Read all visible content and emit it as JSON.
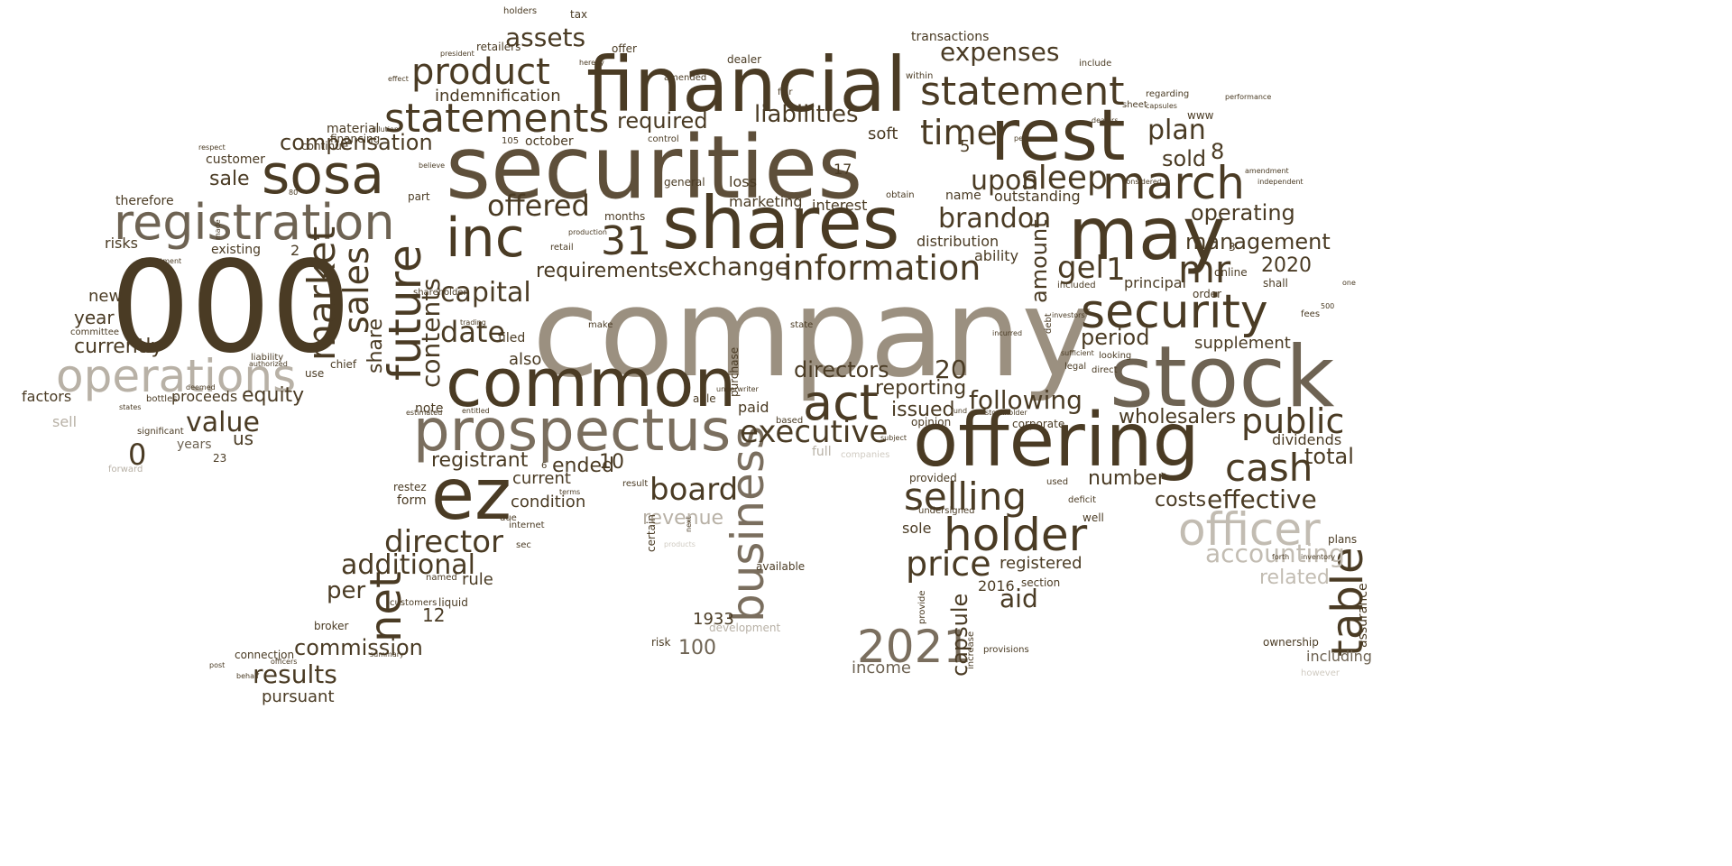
{
  "words": [
    {
      "text": "company",
      "color": "#9b9080"
    },
    {
      "text": "securities",
      "color": "#5e4f3a"
    },
    {
      "text": "000",
      "color": "#4a3b24"
    },
    {
      "text": "financial",
      "color": "#4a3b24"
    },
    {
      "text": "shares",
      "color": "#4a3b24"
    },
    {
      "text": "stock",
      "color": "#6e6353"
    },
    {
      "text": "offering",
      "color": "#4a3b24"
    },
    {
      "text": "common",
      "color": "#4a3b24"
    },
    {
      "text": "prospectus",
      "color": "#7a6e5e"
    },
    {
      "text": "rest",
      "color": "#4a3b24"
    },
    {
      "text": "may",
      "color": "#4a3b24"
    },
    {
      "text": "inc",
      "color": "#4a3b24"
    },
    {
      "text": "ez",
      "color": "#4a3b24"
    },
    {
      "text": "sosa",
      "color": "#4a3b24"
    },
    {
      "text": "registration",
      "color": "#6e6353"
    },
    {
      "text": "statement",
      "color": "#4a3b24"
    },
    {
      "text": "statements",
      "color": "#4a3b24"
    },
    {
      "text": "operations",
      "color": "#b8b1a6"
    },
    {
      "text": "product",
      "color": "#4a3b24"
    },
    {
      "text": "security",
      "color": "#4a3b24"
    },
    {
      "text": "march",
      "color": "#4a3b24"
    },
    {
      "text": "information",
      "color": "#4a3b24"
    },
    {
      "text": "selling",
      "color": "#4a3b24"
    },
    {
      "text": "holder",
      "color": "#4a3b24"
    },
    {
      "text": "officer",
      "color": "#c2bcb2"
    },
    {
      "text": "business",
      "color": "#7a6e5e"
    },
    {
      "text": "future",
      "color": "#4a3b24"
    },
    {
      "text": "market",
      "color": "#4a3b24"
    },
    {
      "text": "act",
      "color": "#4a3b24"
    },
    {
      "text": "2021",
      "color": "#7a6e5e"
    },
    {
      "text": "cash",
      "color": "#4a3b24"
    },
    {
      "text": "public",
      "color": "#4a3b24"
    },
    {
      "text": "table",
      "color": "#4a3b24"
    },
    {
      "text": "director",
      "color": "#4a3b24"
    },
    {
      "text": "executive",
      "color": "#4a3b24"
    },
    {
      "text": "sales",
      "color": "#4a3b24"
    },
    {
      "text": "net",
      "color": "#4a3b24"
    },
    {
      "text": "price",
      "color": "#4a3b24"
    },
    {
      "text": "time",
      "color": "#4a3b24"
    },
    {
      "text": "31",
      "color": "#4a3b24"
    },
    {
      "text": "additional",
      "color": "#4a3b24"
    },
    {
      "text": "offered",
      "color": "#4a3b24"
    },
    {
      "text": "expenses",
      "color": "#4a3b24"
    },
    {
      "text": "assets",
      "color": "#4a3b24"
    },
    {
      "text": "liabilities",
      "color": "#4a3b24"
    },
    {
      "text": "compensation",
      "color": "#4a3b24"
    },
    {
      "text": "required",
      "color": "#4a3b24"
    },
    {
      "text": "indemnification",
      "color": "#4a3b24"
    },
    {
      "text": "upon",
      "color": "#4a3b24"
    },
    {
      "text": "sleep",
      "color": "#4a3b24"
    },
    {
      "text": "brandon",
      "color": "#4a3b24"
    },
    {
      "text": "plan",
      "color": "#4a3b24"
    },
    {
      "text": "sold",
      "color": "#4a3b24"
    },
    {
      "text": "mr",
      "color": "#4a3b24"
    },
    {
      "text": "gel",
      "color": "#4a3b24"
    },
    {
      "text": "management",
      "color": "#4a3b24"
    },
    {
      "text": "operating",
      "color": "#4a3b24"
    },
    {
      "text": "2020",
      "color": "#4a3b24"
    },
    {
      "text": "exchange",
      "color": "#4a3b24"
    },
    {
      "text": "capital",
      "color": "#4a3b24"
    },
    {
      "text": "requirements",
      "color": "#4a3b24"
    },
    {
      "text": "date",
      "color": "#4a3b24"
    },
    {
      "text": "contents",
      "color": "#4a3b24"
    },
    {
      "text": "share",
      "color": "#4a3b24"
    },
    {
      "text": "amount",
      "color": "#4a3b24"
    },
    {
      "text": "period",
      "color": "#4a3b24"
    },
    {
      "text": "supplement",
      "color": "#4a3b24"
    },
    {
      "text": "directors",
      "color": "#4a3b24"
    },
    {
      "text": "reporting",
      "color": "#4a3b24"
    },
    {
      "text": "following",
      "color": "#4a3b24"
    },
    {
      "text": "wholesalers",
      "color": "#4a3b24"
    },
    {
      "text": "issued",
      "color": "#4a3b24"
    },
    {
      "text": "dividends",
      "color": "#4a3b24"
    },
    {
      "text": "total",
      "color": "#4a3b24"
    },
    {
      "text": "effective",
      "color": "#4a3b24"
    },
    {
      "text": "accounting",
      "color": "#c2bcb2"
    },
    {
      "text": "related",
      "color": "#c2bcb2"
    },
    {
      "text": "costs",
      "color": "#4a3b24"
    },
    {
      "text": "number",
      "color": "#4a3b24"
    },
    {
      "text": "board",
      "color": "#4a3b24"
    },
    {
      "text": "revenue",
      "color": "#b8b1a6"
    },
    {
      "text": "registrant",
      "color": "#4a3b24"
    },
    {
      "text": "ended",
      "color": "#4a3b24"
    },
    {
      "text": "10",
      "color": "#4a3b24"
    },
    {
      "text": "current",
      "color": "#4a3b24"
    },
    {
      "text": "condition",
      "color": "#4a3b24"
    },
    {
      "text": "value",
      "color": "#4a3b24"
    },
    {
      "text": "equity",
      "color": "#4a3b24"
    },
    {
      "text": "proceeds",
      "color": "#4a3b24"
    },
    {
      "text": "us",
      "color": "#4a3b24"
    },
    {
      "text": "years",
      "color": "#6e6353"
    },
    {
      "text": "0",
      "color": "#4a3b24"
    },
    {
      "text": "currently",
      "color": "#4a3b24"
    },
    {
      "text": "year",
      "color": "#4a3b24"
    },
    {
      "text": "new",
      "color": "#4a3b24"
    },
    {
      "text": "risks",
      "color": "#4a3b24"
    },
    {
      "text": "existing",
      "color": "#4a3b24"
    },
    {
      "text": "sale",
      "color": "#4a3b24"
    },
    {
      "text": "customer",
      "color": "#4a3b24"
    },
    {
      "text": "therefore",
      "color": "#4a3b24"
    },
    {
      "text": "material",
      "color": "#4a3b24"
    },
    {
      "text": "financing",
      "color": "#4a3b24"
    },
    {
      "text": "continue",
      "color": "#4a3b24"
    },
    {
      "text": "factors",
      "color": "#4a3b24"
    },
    {
      "text": "sell",
      "color": "#b8b1a6"
    },
    {
      "text": "per",
      "color": "#4a3b24"
    },
    {
      "text": "commission",
      "color": "#4a3b24"
    },
    {
      "text": "results",
      "color": "#4a3b24"
    },
    {
      "text": "pursuant",
      "color": "#4a3b24"
    },
    {
      "text": "rule",
      "color": "#4a3b24"
    },
    {
      "text": "12",
      "color": "#4a3b24"
    },
    {
      "text": "aid",
      "color": "#4a3b24"
    },
    {
      "text": "2016",
      "color": "#4a3b24"
    },
    {
      "text": "registered",
      "color": "#4a3b24"
    },
    {
      "text": "capsule",
      "color": "#4a3b24"
    },
    {
      "text": "income",
      "color": "#6e6353"
    },
    {
      "text": "100",
      "color": "#6e6353"
    },
    {
      "text": "1933",
      "color": "#4a3b24"
    },
    {
      "text": "including",
      "color": "#6e6353"
    },
    {
      "text": "assurance",
      "color": "#4a3b24"
    },
    {
      "text": "ownership",
      "color": "#4a3b24"
    },
    {
      "text": "also",
      "color": "#4a3b24"
    },
    {
      "text": "filed",
      "color": "#4a3b24"
    },
    {
      "text": "note",
      "color": "#4a3b24"
    },
    {
      "text": "october",
      "color": "#4a3b24"
    },
    {
      "text": "soft",
      "color": "#4a3b24"
    },
    {
      "text": "loss",
      "color": "#4a3b24"
    },
    {
      "text": "marketing",
      "color": "#4a3b24"
    },
    {
      "text": "interest",
      "color": "#4a3b24"
    },
    {
      "text": "outstanding",
      "color": "#4a3b24"
    },
    {
      "text": "name",
      "color": "#4a3b24"
    },
    {
      "text": "distribution",
      "color": "#4a3b24"
    },
    {
      "text": "ability",
      "color": "#4a3b24"
    },
    {
      "text": "principal",
      "color": "#4a3b24"
    },
    {
      "text": "paid",
      "color": "#4a3b24"
    },
    {
      "text": "sole",
      "color": "#4a3b24"
    },
    {
      "text": "transactions",
      "color": "#4a3b24"
    },
    {
      "text": "20",
      "color": "#4a3b24"
    },
    {
      "text": "17",
      "color": "#4a3b24"
    },
    {
      "text": "8",
      "color": "#4a3b24"
    },
    {
      "text": "5",
      "color": "#4a3b24"
    },
    {
      "text": "1",
      "color": "#4a3b24"
    },
    {
      "text": "2",
      "color": "#4a3b24"
    },
    {
      "text": "tax",
      "color": "#4a3b24"
    },
    {
      "text": "holders",
      "color": "#4a3b24"
    },
    {
      "text": "retailers",
      "color": "#4a3b24"
    },
    {
      "text": "offer",
      "color": "#4a3b24"
    },
    {
      "text": "dealer",
      "color": "#4a3b24"
    },
    {
      "text": "broker",
      "color": "#4a3b24"
    },
    {
      "text": "connection",
      "color": "#4a3b24"
    },
    {
      "text": "liquid",
      "color": "#4a3b24"
    },
    {
      "text": "form",
      "color": "#4a3b24"
    },
    {
      "text": "restez",
      "color": "#4a3b24"
    },
    {
      "text": "development",
      "color": "#b8b1a6"
    },
    {
      "text": "available",
      "color": "#4a3b24"
    },
    {
      "text": "full",
      "color": "#b8b1a6"
    },
    {
      "text": "companies",
      "color": "#d0cbc2"
    },
    {
      "text": "however",
      "color": "#d0cbc2"
    },
    {
      "text": "forward",
      "color": "#b8b1a6"
    },
    {
      "text": "23",
      "color": "#4a3b24"
    },
    {
      "text": "chief",
      "color": "#4a3b24"
    },
    {
      "text": "use",
      "color": "#4a3b24"
    },
    {
      "text": "shareholder",
      "color": "#4a3b24"
    },
    {
      "text": "retail",
      "color": "#4a3b24"
    },
    {
      "text": "months",
      "color": "#4a3b24"
    },
    {
      "text": "part",
      "color": "#4a3b24"
    },
    {
      "text": "well",
      "color": "#4a3b24"
    },
    {
      "text": "provided",
      "color": "#4a3b24"
    },
    {
      "text": "used",
      "color": "#4a3b24"
    },
    {
      "text": "section",
      "color": "#4a3b24"
    },
    {
      "text": "plans",
      "color": "#4a3b24"
    },
    {
      "text": "shall",
      "color": "#4a3b24"
    },
    {
      "text": "order",
      "color": "#4a3b24"
    },
    {
      "text": "online",
      "color": "#4a3b24"
    },
    {
      "text": "included",
      "color": "#4a3b24"
    },
    {
      "text": "looking",
      "color": "#4a3b24"
    },
    {
      "text": "www",
      "color": "#4a3b24"
    },
    {
      "text": "include",
      "color": "#4a3b24"
    },
    {
      "text": "regarding",
      "color": "#4a3b24"
    },
    {
      "text": "within",
      "color": "#4a3b24"
    },
    {
      "text": "control",
      "color": "#4a3b24"
    },
    {
      "text": "general",
      "color": "#4a3b24"
    },
    {
      "text": "certain",
      "color": "#4a3b24"
    },
    {
      "text": "purchase",
      "color": "#4a3b24"
    },
    {
      "text": "opinion",
      "color": "#4a3b24"
    },
    {
      "text": "based",
      "color": "#4a3b24"
    },
    {
      "text": "able",
      "color": "#4a3b24"
    },
    {
      "text": "risk",
      "color": "#4a3b24"
    },
    {
      "text": "corporate",
      "color": "#4a3b24"
    },
    {
      "text": "debt",
      "color": "#4a3b24"
    },
    {
      "text": "provide",
      "color": "#4a3b24"
    },
    {
      "text": "increase",
      "color": "#4a3b24"
    },
    {
      "text": "provisions",
      "color": "#4a3b24"
    },
    {
      "text": "deficit",
      "color": "#4a3b24"
    },
    {
      "text": "undersigned",
      "color": "#4a3b24"
    },
    {
      "text": "internet",
      "color": "#4a3b24"
    },
    {
      "text": "due",
      "color": "#4a3b24"
    },
    {
      "text": "sec",
      "color": "#4a3b24"
    },
    {
      "text": "named",
      "color": "#4a3b24"
    },
    {
      "text": "customers",
      "color": "#4a3b24"
    },
    {
      "text": "summary",
      "color": "#4a3b24"
    },
    {
      "text": "officers",
      "color": "#4a3b24"
    },
    {
      "text": "behalf",
      "color": "#4a3b24"
    },
    {
      "text": "post",
      "color": "#4a3b24"
    },
    {
      "text": "significant",
      "color": "#4a3b24"
    },
    {
      "text": "bottles",
      "color": "#4a3b24"
    },
    {
      "text": "states",
      "color": "#4a3b24"
    },
    {
      "text": "liability",
      "color": "#4a3b24"
    },
    {
      "text": "authorized",
      "color": "#4a3b24"
    },
    {
      "text": "investment",
      "color": "#4a3b24"
    },
    {
      "text": "committee",
      "color": "#4a3b24"
    },
    {
      "text": "respect",
      "color": "#4a3b24"
    },
    {
      "text": "effect",
      "color": "#4a3b24"
    },
    {
      "text": "president",
      "color": "#4a3b24"
    },
    {
      "text": "dilution",
      "color": "#4a3b24"
    },
    {
      "text": "amended",
      "color": "#4a3b24"
    },
    {
      "text": "believe",
      "color": "#4a3b24"
    },
    {
      "text": "trading",
      "color": "#4a3b24"
    },
    {
      "text": "make",
      "color": "#4a3b24"
    },
    {
      "text": "entitled",
      "color": "#4a3b24"
    },
    {
      "text": "result",
      "color": "#4a3b24"
    },
    {
      "text": "terms",
      "color": "#4a3b24"
    },
    {
      "text": "state",
      "color": "#4a3b24"
    },
    {
      "text": "fund",
      "color": "#4a3b24"
    },
    {
      "text": "obtain",
      "color": "#4a3b24"
    },
    {
      "text": "products",
      "color": "#d0cbc2"
    },
    {
      "text": "6",
      "color": "#4a3b24"
    },
    {
      "text": "3",
      "color": "#4a3b24"
    },
    {
      "text": "sheet",
      "color": "#4a3b24"
    },
    {
      "text": "fees",
      "color": "#4a3b24"
    },
    {
      "text": "500",
      "color": "#4a3b24"
    },
    {
      "text": "next",
      "color": "#4a3b24"
    },
    {
      "text": "one",
      "color": "#4a3b24"
    },
    {
      "text": "sufficient",
      "color": "#4a3b24"
    },
    {
      "text": "legal",
      "color": "#4a3b24"
    },
    {
      "text": "direct",
      "color": "#4a3b24"
    },
    {
      "text": "investors",
      "color": "#4a3b24"
    },
    {
      "text": "incurred",
      "color": "#4a3b24"
    },
    {
      "text": "stockholder",
      "color": "#4a3b24"
    },
    {
      "text": "subject",
      "color": "#4a3b24"
    },
    {
      "text": "estimated",
      "color": "#4a3b24"
    },
    {
      "text": "production",
      "color": "#4a3b24"
    },
    {
      "text": "underwriter",
      "color": "#4a3b24"
    },
    {
      "text": "hereby",
      "color": "#4a3b24"
    },
    {
      "text": "fair",
      "color": "#4a3b24"
    },
    {
      "text": "person",
      "color": "#4a3b24"
    },
    {
      "text": "dealers",
      "color": "#4a3b24"
    },
    {
      "text": "capsules",
      "color": "#4a3b24"
    },
    {
      "text": "performance",
      "color": "#4a3b24"
    },
    {
      "text": "amendment",
      "color": "#4a3b24"
    },
    {
      "text": "independent",
      "color": "#4a3b24"
    },
    {
      "text": "considered",
      "color": "#4a3b24"
    },
    {
      "text": "forth",
      "color": "#4a3b24"
    },
    {
      "text": "inventory",
      "color": "#4a3b24"
    },
    {
      "text": "deemed",
      "color": "#4a3b24"
    },
    {
      "text": "made",
      "color": "#4a3b24"
    },
    {
      "text": "80",
      "color": "#4a3b24"
    },
    {
      "text": "105",
      "color": "#4a3b24"
    }
  ]
}
